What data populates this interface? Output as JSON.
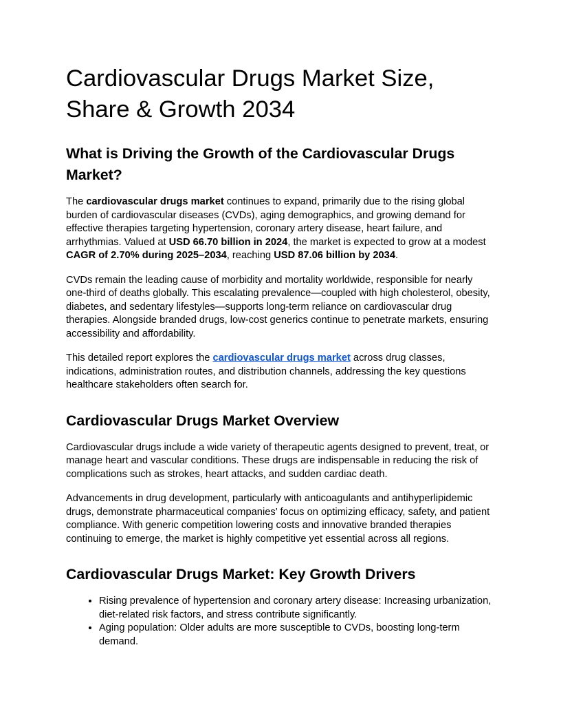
{
  "colors": {
    "text": "#000000",
    "link": "#1155cc",
    "background": "#ffffff"
  },
  "doc": {
    "title": "Cardiovascular Drugs Market Size, Share & Growth 2034",
    "sections": [
      {
        "heading": "What is Driving the Growth of the Cardiovascular Drugs Market?",
        "paragraphs": [
          {
            "segments": [
              {
                "t": "The "
              },
              {
                "t": "cardiovascular drugs market",
                "b": true
              },
              {
                "t": " continues to expand, primarily due to the rising global burden of cardiovascular diseases (CVDs), aging demographics, and growing demand for effective therapies targeting hypertension, coronary artery disease, heart failure, and arrhythmias. Valued at "
              },
              {
                "t": "USD 66.70 billion in 2024",
                "b": true
              },
              {
                "t": ", the market is expected to grow at a modest "
              },
              {
                "t": "CAGR of 2.70% during 2025–2034",
                "b": true
              },
              {
                "t": ", reaching "
              },
              {
                "t": "USD 87.06 billion by 2034",
                "b": true
              },
              {
                "t": "."
              }
            ]
          },
          {
            "segments": [
              {
                "t": "CVDs remain the leading cause of morbidity and mortality worldwide, responsible for nearly one-third of deaths globally. This escalating prevalence—coupled with high cholesterol, obesity, diabetes, and sedentary lifestyles—supports long-term reliance on cardiovascular drug therapies. Alongside branded drugs, low-cost generics continue to penetrate markets, ensuring accessibility and affordability."
              }
            ]
          },
          {
            "segments": [
              {
                "t": "This detailed report explores the "
              },
              {
                "t": "cardiovascular drugs market",
                "b": true,
                "link": true
              },
              {
                "t": " across drug classes, indications, administration routes, and distribution channels, addressing the key questions healthcare stakeholders often search for."
              }
            ]
          }
        ]
      },
      {
        "heading": "Cardiovascular Drugs Market Overview",
        "paragraphs": [
          {
            "segments": [
              {
                "t": "Cardiovascular drugs include a wide variety of therapeutic agents designed to prevent, treat, or manage heart and vascular conditions. These drugs are indispensable in reducing the risk of complications such as strokes, heart attacks, and sudden cardiac death."
              }
            ]
          },
          {
            "segments": [
              {
                "t": "Advancements in drug development, particularly with anticoagulants and antihyperlipidemic drugs, demonstrate pharmaceutical companies’ focus on optimizing efficacy, safety, and patient compliance. With generic competition lowering costs and innovative branded therapies continuing to emerge, the market is highly competitive yet essential across all regions."
              }
            ]
          }
        ]
      },
      {
        "heading": "Cardiovascular Drugs Market: Key Growth Drivers",
        "bullets": [
          "Rising prevalence of hypertension and coronary artery disease: Increasing urbanization, diet-related risk factors, and stress contribute significantly.",
          "Aging population: Older adults are more susceptible to CVDs, boosting long-term demand."
        ]
      }
    ]
  }
}
